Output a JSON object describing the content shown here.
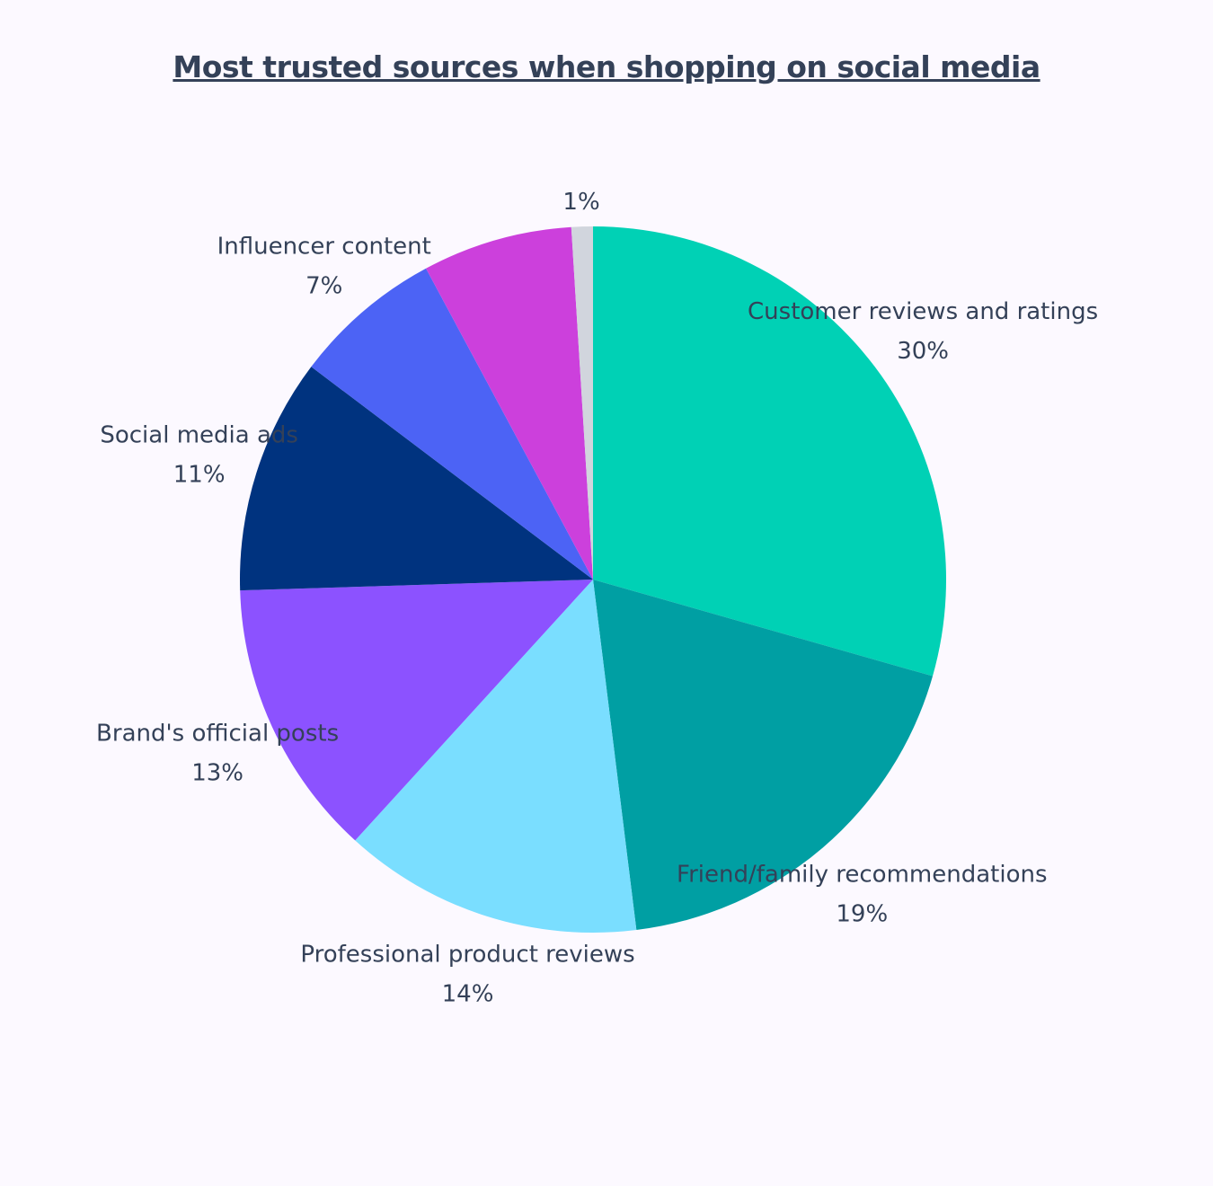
{
  "chart_data": {
    "type": "pie",
    "title": "Most trusted sources when shopping on social media",
    "start": "top, clockwise",
    "slices": [
      {
        "label": "Customer reviews and ratings",
        "value": 30,
        "value_label": "30%",
        "color": "#00d1b5"
      },
      {
        "label": "Friend/family recommendations",
        "value": 19,
        "value_label": "19%",
        "color": "#009fa3"
      },
      {
        "label": "Professional product reviews",
        "value": 14,
        "value_label": "14%",
        "color": "#7adeff"
      },
      {
        "label": "Brand's official posts",
        "value": 13,
        "value_label": "13%",
        "color": "#8c52ff"
      },
      {
        "label": "Social media ads",
        "value": 11,
        "value_label": "11%",
        "color": "#00337f"
      },
      {
        "label": "Influencer content",
        "value": 7,
        "value_label": "7%",
        "color": "#4c63f5"
      },
      {
        "label": "",
        "value": 7,
        "value_label": "",
        "color": "#cc40dc"
      },
      {
        "label": "",
        "value": 1,
        "value_label": "1%",
        "color": "#d1d5dd"
      }
    ]
  }
}
